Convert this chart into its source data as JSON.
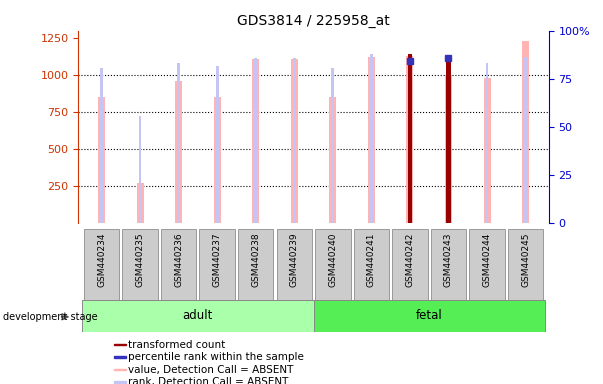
{
  "title": "GDS3814 / 225958_at",
  "samples": [
    "GSM440234",
    "GSM440235",
    "GSM440236",
    "GSM440237",
    "GSM440238",
    "GSM440239",
    "GSM440240",
    "GSM440241",
    "GSM440242",
    "GSM440243",
    "GSM440244",
    "GSM440245"
  ],
  "groups": [
    "adult",
    "adult",
    "adult",
    "adult",
    "adult",
    "adult",
    "fetal",
    "fetal",
    "fetal",
    "fetal",
    "fetal",
    "fetal"
  ],
  "value_absent": [
    850,
    270,
    960,
    850,
    1110,
    1110,
    850,
    1120,
    1130,
    1000,
    980,
    1230
  ],
  "rank_absent": [
    1050,
    720,
    1080,
    1060,
    1115,
    1115,
    1050,
    1140,
    0,
    1120,
    1080,
    1125
  ],
  "transformed_count": [
    0,
    0,
    0,
    0,
    0,
    0,
    0,
    0,
    1140,
    1110,
    0,
    0
  ],
  "percentile_rank_right": [
    0,
    0,
    0,
    0,
    0,
    0,
    0,
    0,
    84,
    86,
    0,
    0
  ],
  "ylim_left": [
    0,
    1300
  ],
  "ylim_right": [
    0,
    100
  ],
  "yticks_left": [
    250,
    500,
    750,
    1000,
    1250
  ],
  "yticks_right": [
    0,
    25,
    50,
    75,
    100
  ],
  "color_value_absent": "#ffb3b3",
  "color_rank_absent": "#c5c5f5",
  "color_transformed": "#990000",
  "color_blue_rank": "#3333bb",
  "adult_color": "#aaffaa",
  "fetal_color": "#55ee55",
  "axis_left_color": "#cc3300",
  "axis_right_color": "#0000cc",
  "background_color": "#ffffff",
  "grid_color": "#000000",
  "label_bg_color": "#cccccc",
  "label_border_color": "#999999"
}
